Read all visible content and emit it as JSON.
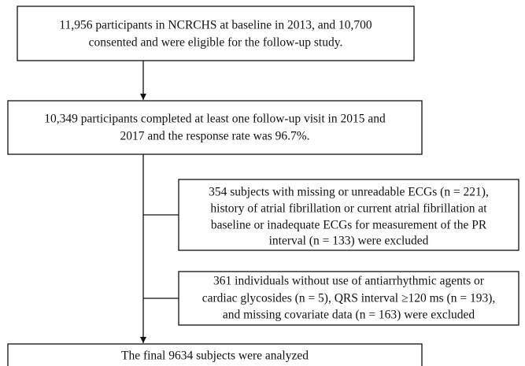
{
  "nodes": [
    {
      "lines": [
        "11,956 participants in NCRCHS at baseline in 2013, and 10,700",
        "consented and were eligible for the follow-up study."
      ]
    },
    {
      "lines": [
        "10,349 participants completed at least one follow-up visit in 2015 and",
        "2017 and the response rate was 96.7%."
      ]
    },
    {
      "lines": [
        "354 subjects with missing or unreadable ECGs (n = 221),",
        "history of atrial fibrillation or current atrial fibrillation at",
        "baseline or inadequate ECGs for measurement of the PR",
        "interval (n = 133)  were excluded"
      ]
    },
    {
      "lines": [
        "361 individuals without use of antiarrhythmic agents or",
        "cardiac glycosides (n = 5), QRS interval ≥120 ms (n = 193),",
        "and missing covariate data (n = 163) were excluded"
      ]
    },
    {
      "lines": [
        "The final 9634  subjects were analyzed"
      ]
    }
  ]
}
